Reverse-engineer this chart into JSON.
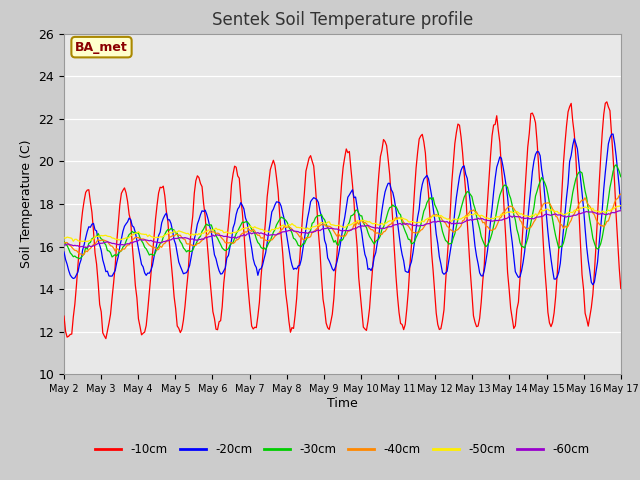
{
  "title": "Sentek Soil Temperature profile",
  "xlabel": "Time",
  "ylabel": "Soil Temperature (C)",
  "annotation": "BA_met",
  "ylim": [
    10,
    26
  ],
  "yticks": [
    10,
    12,
    14,
    16,
    18,
    20,
    22,
    24,
    26
  ],
  "xtick_labels": [
    "May 2",
    "May 3",
    "May 4",
    "May 5",
    "May 6",
    "May 7",
    "May 8",
    "May 9",
    "May 10",
    "May 11",
    "May 12",
    "May 13",
    "May 14",
    "May 15",
    "May 16",
    "May 17"
  ],
  "legend_entries": [
    "-10cm",
    "-20cm",
    "-30cm",
    "-40cm",
    "-50cm",
    "-60cm"
  ],
  "line_colors": [
    "#ff0000",
    "#0000ff",
    "#00cc00",
    "#ff8800",
    "#ffee00",
    "#9900cc"
  ],
  "bg_color": "#e8e8e8",
  "fig_bg_color": "#c8c8c8"
}
